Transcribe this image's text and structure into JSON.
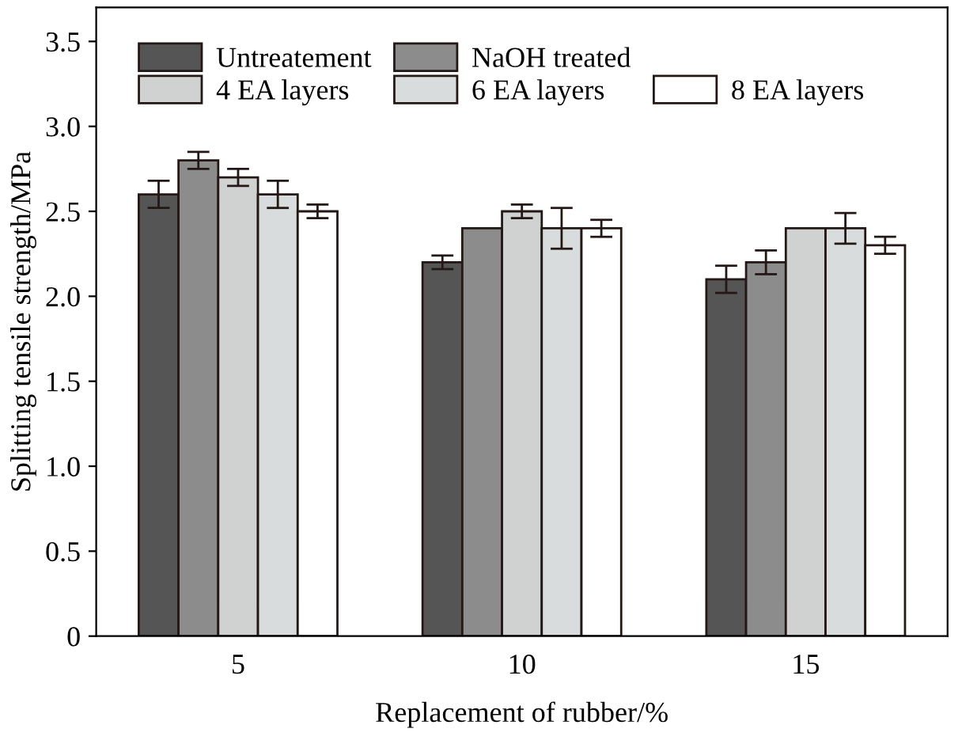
{
  "chart_data": {
    "type": "bar",
    "xlabel": "Replacement of rubber/%",
    "ylabel": "Splitting tensile strength/MPa",
    "categories": [
      "5",
      "10",
      "15"
    ],
    "series": [
      {
        "name": "Untreatement",
        "color": "#555555",
        "values": [
          2.6,
          2.2,
          2.1
        ],
        "errors": [
          0.08,
          0.04,
          0.08
        ]
      },
      {
        "name": "NaOH treated",
        "color": "#8c8c8c",
        "values": [
          2.8,
          2.4,
          2.2
        ],
        "errors": [
          0.05,
          null,
          0.07
        ]
      },
      {
        "name": "4 EA layers",
        "color": "#d0d2d2",
        "values": [
          2.7,
          2.5,
          2.4
        ],
        "errors": [
          0.05,
          0.04,
          null
        ]
      },
      {
        "name": "6 EA layers",
        "color": "#d9dcdc",
        "values": [
          2.6,
          2.4,
          2.4
        ],
        "errors": [
          0.08,
          0.12,
          0.09
        ]
      },
      {
        "name": "8 EA layers",
        "color": "#ffffff",
        "values": [
          2.5,
          2.4,
          2.3
        ],
        "errors": [
          0.04,
          0.05,
          0.05
        ]
      }
    ],
    "ylim": [
      0,
      3.7
    ],
    "yticks": [
      0,
      {
        "value": 0.5,
        "label": "0.5"
      },
      {
        "value": 1,
        "label": "1.0"
      },
      {
        "value": 1.5,
        "label": "1.5"
      },
      {
        "value": 2,
        "label": "2.0"
      },
      {
        "value": 2.5,
        "label": "2.5"
      },
      {
        "value": 3,
        "label": "3.0"
      },
      {
        "value": 3.5,
        "label": "3.5"
      }
    ],
    "grid": false,
    "legend": "top"
  }
}
